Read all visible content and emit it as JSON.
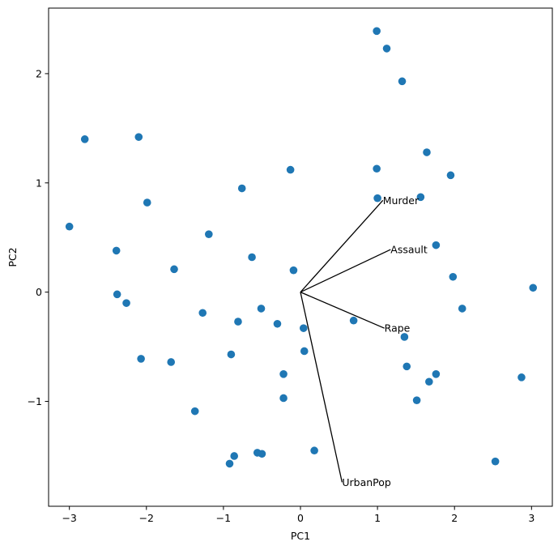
{
  "chart_data": {
    "type": "scatter",
    "title": "",
    "xlabel": "PC1",
    "ylabel": "PC2",
    "xlim": [
      -3.27,
      3.27
    ],
    "ylim": [
      -1.96,
      2.6
    ],
    "xticks": [
      -3,
      -2,
      -1,
      0,
      1,
      2,
      3
    ],
    "xtick_labels": [
      "−3",
      "−2",
      "−1",
      "0",
      "1",
      "2",
      "3"
    ],
    "yticks": [
      -1,
      0,
      1,
      2
    ],
    "ytick_labels": [
      "−1",
      "0",
      "1",
      "2"
    ],
    "grid": false,
    "point_color": "#1f77b4",
    "points": [
      {
        "x": 0.99,
        "y": 2.39
      },
      {
        "x": 1.12,
        "y": 2.23
      },
      {
        "x": 1.32,
        "y": 1.93
      },
      {
        "x": -2.8,
        "y": 1.4
      },
      {
        "x": -2.1,
        "y": 1.42
      },
      {
        "x": 1.64,
        "y": 1.28
      },
      {
        "x": -0.13,
        "y": 1.12
      },
      {
        "x": 0.99,
        "y": 1.13
      },
      {
        "x": 1.95,
        "y": 1.07
      },
      {
        "x": -0.76,
        "y": 0.95
      },
      {
        "x": 1.0,
        "y": 0.86
      },
      {
        "x": 1.56,
        "y": 0.87
      },
      {
        "x": -1.99,
        "y": 0.82
      },
      {
        "x": -3.0,
        "y": 0.6
      },
      {
        "x": -1.19,
        "y": 0.53
      },
      {
        "x": 1.76,
        "y": 0.43
      },
      {
        "x": -2.39,
        "y": 0.38
      },
      {
        "x": -0.63,
        "y": 0.32
      },
      {
        "x": -1.64,
        "y": 0.21
      },
      {
        "x": -0.09,
        "y": 0.2
      },
      {
        "x": 1.98,
        "y": 0.14
      },
      {
        "x": 3.02,
        "y": 0.04
      },
      {
        "x": -2.38,
        "y": -0.02
      },
      {
        "x": -2.26,
        "y": -0.1
      },
      {
        "x": -0.51,
        "y": -0.15
      },
      {
        "x": 2.1,
        "y": -0.15
      },
      {
        "x": -1.27,
        "y": -0.19
      },
      {
        "x": -0.81,
        "y": -0.27
      },
      {
        "x": 0.69,
        "y": -0.26
      },
      {
        "x": -0.3,
        "y": -0.29
      },
      {
        "x": 0.04,
        "y": -0.33
      },
      {
        "x": 1.35,
        "y": -0.41
      },
      {
        "x": 0.05,
        "y": -0.54
      },
      {
        "x": -0.9,
        "y": -0.57
      },
      {
        "x": -2.07,
        "y": -0.61
      },
      {
        "x": -1.68,
        "y": -0.64
      },
      {
        "x": 1.38,
        "y": -0.68
      },
      {
        "x": -0.22,
        "y": -0.75
      },
      {
        "x": 1.76,
        "y": -0.75
      },
      {
        "x": 2.87,
        "y": -0.78
      },
      {
        "x": 1.67,
        "y": -0.82
      },
      {
        "x": -0.22,
        "y": -0.97
      },
      {
        "x": 1.51,
        "y": -0.99
      },
      {
        "x": -1.37,
        "y": -1.09
      },
      {
        "x": 0.18,
        "y": -1.45
      },
      {
        "x": -0.56,
        "y": -1.47
      },
      {
        "x": -0.5,
        "y": -1.48
      },
      {
        "x": -0.86,
        "y": -1.5
      },
      {
        "x": 2.53,
        "y": -1.55
      },
      {
        "x": -0.92,
        "y": -1.57
      }
    ],
    "loadings": [
      {
        "label": "Murder",
        "x": 1.07,
        "y": 0.84
      },
      {
        "label": "Assault",
        "x": 1.17,
        "y": 0.39
      },
      {
        "label": "UrbanPop",
        "x": 0.54,
        "y": -1.74
      },
      {
        "label": "Rape",
        "x": 1.09,
        "y": -0.33
      }
    ]
  }
}
